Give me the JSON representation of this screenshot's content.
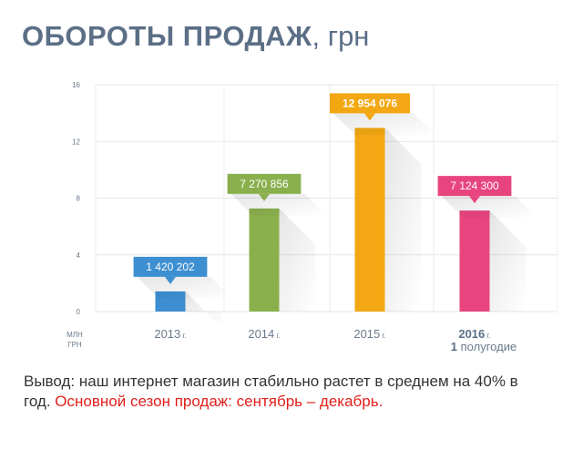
{
  "header": {
    "title_bold": "ОБОРОТЫ ПРОДАЖ",
    "title_unit": ", грн"
  },
  "chart_data": {
    "type": "bar",
    "title": "ОБОРОТЫ ПРОДАЖ, грн",
    "ylabel": "МЛН ГРН",
    "ylim": [
      0,
      16
    ],
    "yticks": [
      "16",
      "12",
      "8",
      "4",
      "0"
    ],
    "ytick_values": [
      16,
      12,
      8,
      4,
      0
    ],
    "grid": true,
    "categories": [
      {
        "main": "2013",
        "suffix": " г.",
        "second_line": ""
      },
      {
        "main": "2014",
        "suffix": " г.",
        "second_line": ""
      },
      {
        "main": "2015",
        "suffix": " г.",
        "second_line": ""
      },
      {
        "main": "2016",
        "suffix": " г.",
        "second_line": "1 полугодие"
      }
    ],
    "values": [
      1.420202,
      7.270856,
      12.954076,
      7.1243
    ],
    "data_labels": [
      "1 420 202",
      "7 270 856",
      "12 954 076",
      "7 124 300"
    ],
    "colors": [
      "#3d8fd1",
      "#8ab04e",
      "#f3a712",
      "#e8457f"
    ]
  },
  "conclusion": {
    "text": "Вывод: наш интернет магазин стабильно растет в среднем на 40% в год. ",
    "accent_text": "Основной сезон продаж: сентябрь – декабрь."
  }
}
